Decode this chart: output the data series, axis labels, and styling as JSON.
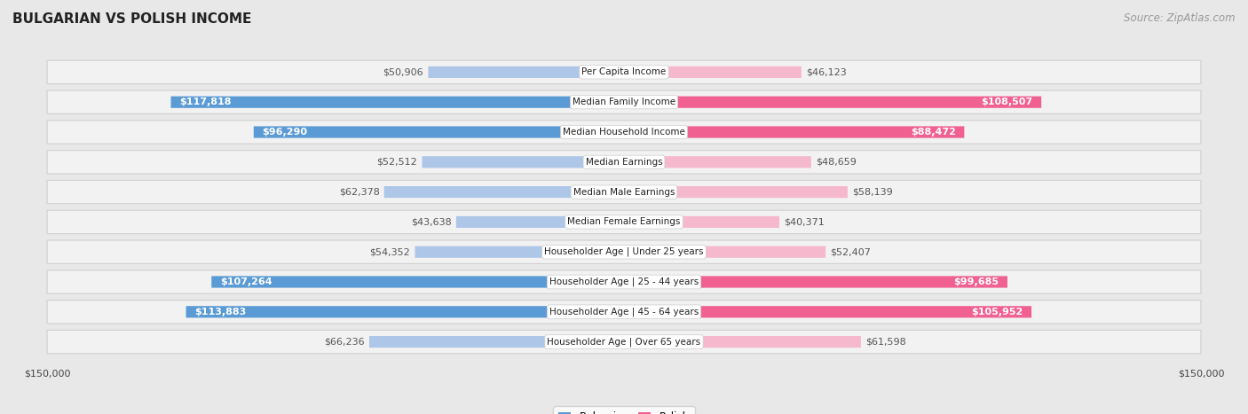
{
  "title": "BULGARIAN VS POLISH INCOME",
  "source": "Source: ZipAtlas.com",
  "max_value": 150000,
  "categories": [
    "Per Capita Income",
    "Median Family Income",
    "Median Household Income",
    "Median Earnings",
    "Median Male Earnings",
    "Median Female Earnings",
    "Householder Age | Under 25 years",
    "Householder Age | 25 - 44 years",
    "Householder Age | 45 - 64 years",
    "Householder Age | Over 65 years"
  ],
  "bulgarian_values": [
    50906,
    117818,
    96290,
    52512,
    62378,
    43638,
    54352,
    107264,
    113883,
    66236
  ],
  "polish_values": [
    46123,
    108507,
    88472,
    48659,
    58139,
    40371,
    52407,
    99685,
    105952,
    61598
  ],
  "bulgarian_labels": [
    "$50,906",
    "$117,818",
    "$96,290",
    "$52,512",
    "$62,378",
    "$43,638",
    "$54,352",
    "$107,264",
    "$113,883",
    "$66,236"
  ],
  "polish_labels": [
    "$46,123",
    "$108,507",
    "$88,472",
    "$48,659",
    "$58,139",
    "$40,371",
    "$52,407",
    "$99,685",
    "$105,952",
    "$61,598"
  ],
  "bulgarian_color_bar": "#aec6e8",
  "polish_color_bar": "#f5b8cc",
  "bulgarian_color_highlight": "#5b9bd5",
  "polish_color_highlight": "#f06090",
  "highlight_threshold": 80000,
  "bg_color": "#e8e8e8",
  "row_bg_color": "#f0f0f0",
  "title_fontsize": 11,
  "source_fontsize": 8.5,
  "bar_label_fontsize": 8,
  "category_fontsize": 7.5,
  "axis_label_fontsize": 8
}
